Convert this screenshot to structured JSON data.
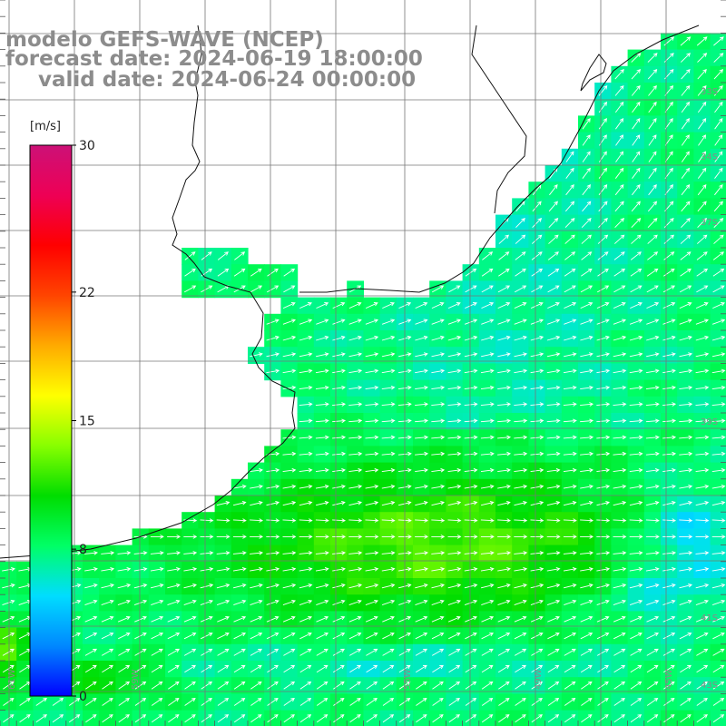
{
  "title": {
    "line1": "modelo GEFS-WAVE (NCEP)",
    "line2": "forecast date: 2024-06-19 18:00:00",
    "line3": "valid date: 2024-06-24 00:00:00"
  },
  "colorbar": {
    "unit": "[m/s]",
    "ticks": [
      {
        "value": 30,
        "label": "30"
      },
      {
        "value": 22,
        "label": "22"
      },
      {
        "value": 15,
        "label": "15"
      },
      {
        "value": 8,
        "label": "8"
      },
      {
        "value": 0,
        "label": "0"
      }
    ],
    "min": 0,
    "max": 30,
    "colors": [
      "#0000ff",
      "#0088ff",
      "#00ddff",
      "#00ff66",
      "#00dd00",
      "#88ff00",
      "#ffff00",
      "#ffaa00",
      "#ff4400",
      "#ff0000",
      "#ee0055",
      "#cc1177"
    ]
  },
  "map": {
    "lon_range": [
      -65,
      -40
    ],
    "lat_range": [
      -43,
      -22
    ],
    "grid_spacing_deg": 2,
    "longitude_labels": [
      "61W",
      "59W",
      "55W",
      "49W",
      "45W"
    ],
    "latitude_labels": [
      "33S",
      "34S",
      "37S",
      "39S",
      "41S",
      "43S"
    ],
    "land_color": "#ffffff",
    "arrow_color": "#ffffff",
    "wind_direction": "predominantly from the southwest, arrows pointing north-east"
  }
}
